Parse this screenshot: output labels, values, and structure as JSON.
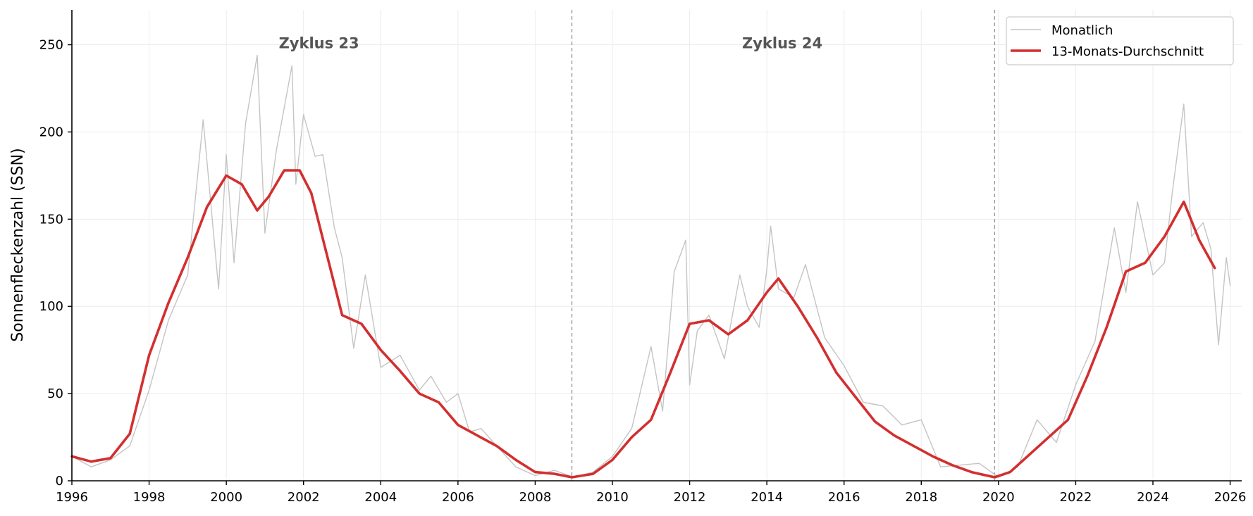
{
  "chart_data": {
    "type": "line",
    "title": "",
    "xlabel": "",
    "ylabel": "Sonnenfleckenzahl (SSN)",
    "xlim": [
      1996,
      2026.3
    ],
    "ylim": [
      0,
      270
    ],
    "xticks": [
      1996,
      1998,
      2000,
      2002,
      2004,
      2006,
      2008,
      2010,
      2012,
      2014,
      2016,
      2018,
      2020,
      2022,
      2024,
      2026
    ],
    "xtick_labels": [
      "1996",
      "1998",
      "2000",
      "2002",
      "2004",
      "2006",
      "2008",
      "2010",
      "2012",
      "2014",
      "2016",
      "2018",
      "2020",
      "2022",
      "2024",
      "2026"
    ],
    "yticks": [
      0,
      50,
      100,
      150,
      200,
      250
    ],
    "ytick_labels": [
      "0",
      "50",
      "100",
      "150",
      "200",
      "250"
    ],
    "grid": true,
    "legend_position": "top-right",
    "cycle_boundaries": [
      2008.95,
      2019.9
    ],
    "annotations": [
      {
        "text": "Zyklus 23",
        "x": 2002.4,
        "y": 248
      },
      {
        "text": "Zyklus 24",
        "x": 2014.4,
        "y": 248
      }
    ],
    "series": [
      {
        "name": "Monatlich",
        "color": "#c4c4c4",
        "x": [
          1996.0,
          1996.5,
          1997.0,
          1997.5,
          1998.0,
          1998.5,
          1999.0,
          1999.4,
          1999.8,
          2000.0,
          2000.2,
          2000.5,
          2000.8,
          2001.0,
          2001.3,
          2001.7,
          2001.8,
          2002.0,
          2002.3,
          2002.5,
          2002.8,
          2003.0,
          2003.3,
          2003.6,
          2004.0,
          2004.5,
          2005.0,
          2005.3,
          2005.7,
          2006.0,
          2006.3,
          2006.6,
          2007.0,
          2007.5,
          2008.0,
          2008.5,
          2009.0,
          2009.5,
          2010.0,
          2010.5,
          2011.0,
          2011.3,
          2011.6,
          2011.9,
          2012.0,
          2012.2,
          2012.5,
          2012.9,
          2013.3,
          2013.5,
          2013.8,
          2014.0,
          2014.1,
          2014.3,
          2014.7,
          2015.0,
          2015.5,
          2016.0,
          2016.5,
          2017.0,
          2017.5,
          2018.0,
          2018.5,
          2019.0,
          2019.5,
          2020.0,
          2020.5,
          2021.0,
          2021.5,
          2022.0,
          2022.5,
          2023.0,
          2023.3,
          2023.6,
          2024.0,
          2024.3,
          2024.5,
          2024.8,
          2025.0,
          2025.3,
          2025.5,
          2025.7,
          2025.9,
          2026.0
        ],
        "y": [
          14,
          8,
          12,
          20,
          52,
          92,
          118,
          207,
          110,
          187,
          125,
          205,
          244,
          142,
          190,
          238,
          170,
          210,
          186,
          187,
          145,
          128,
          76,
          118,
          65,
          72,
          52,
          60,
          45,
          50,
          28,
          30,
          20,
          8,
          3,
          6,
          2,
          5,
          14,
          30,
          77,
          40,
          120,
          138,
          55,
          86,
          95,
          70,
          118,
          100,
          88,
          121,
          146,
          110,
          105,
          124,
          82,
          66,
          45,
          43,
          32,
          35,
          8,
          9,
          10,
          2,
          8,
          35,
          22,
          55,
          80,
          145,
          108,
          160,
          118,
          125,
          165,
          216,
          140,
          148,
          133,
          78,
          128,
          112
        ]
      },
      {
        "name": "13-Monats-Durchschnitt",
        "color": "#d32f2f",
        "x": [
          1996.0,
          1996.5,
          1997.0,
          1997.5,
          1998.0,
          1998.5,
          1999.0,
          1999.5,
          2000.0,
          2000.4,
          2000.8,
          2001.1,
          2001.5,
          2001.9,
          2002.2,
          2002.6,
          2003.0,
          2003.5,
          2004.0,
          2004.5,
          2005.0,
          2005.5,
          2006.0,
          2006.5,
          2007.0,
          2007.5,
          2008.0,
          2008.5,
          2008.95,
          2009.5,
          2010.0,
          2010.5,
          2011.0,
          2011.5,
          2012.0,
          2012.5,
          2013.0,
          2013.5,
          2014.0,
          2014.3,
          2014.8,
          2015.3,
          2015.8,
          2016.3,
          2016.8,
          2017.3,
          2017.8,
          2018.3,
          2018.8,
          2019.3,
          2019.9,
          2020.3,
          2020.8,
          2021.3,
          2021.8,
          2022.3,
          2022.8,
          2023.3,
          2023.8,
          2024.3,
          2024.8,
          2025.2,
          2025.6
        ],
        "y": [
          14,
          11,
          13,
          27,
          72,
          102,
          128,
          157,
          175,
          170,
          155,
          163,
          178,
          178,
          165,
          130,
          95,
          90,
          75,
          63,
          50,
          45,
          32,
          26,
          20,
          12,
          5,
          4,
          2,
          4,
          12,
          25,
          35,
          62,
          90,
          92,
          84,
          92,
          108,
          116,
          100,
          82,
          62,
          48,
          34,
          26,
          20,
          14,
          9,
          5,
          2,
          5,
          15,
          25,
          35,
          60,
          88,
          120,
          125,
          140,
          160,
          138,
          122
        ]
      }
    ]
  }
}
